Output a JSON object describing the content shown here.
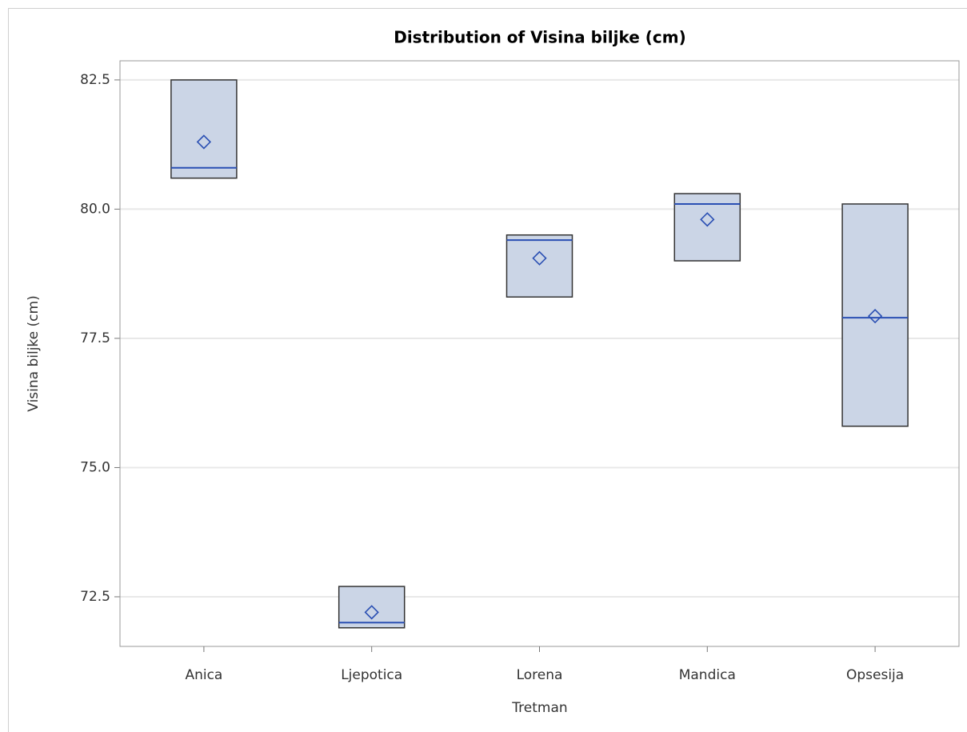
{
  "chart_data": {
    "type": "box",
    "title": "Distribution of Visina biljke (cm)",
    "x_label": "Tretman",
    "y_label": "Visina biljke (cm)",
    "categories": [
      "Anica",
      "Ljepotica",
      "Lorena",
      "Mandica",
      "Opsesija"
    ],
    "q1": [
      80.6,
      71.9,
      78.3,
      79.0,
      75.8
    ],
    "median": [
      80.8,
      72.0,
      79.4,
      80.1,
      77.9
    ],
    "q3": [
      82.5,
      72.7,
      79.5,
      80.3,
      80.1
    ],
    "mean": [
      81.3,
      72.2,
      79.05,
      79.8,
      77.93
    ],
    "box_color": "#cbd5e6",
    "line_color": "#2a4fb3",
    "ylim": [
      71.54,
      82.87
    ],
    "yticks": [
      72.5,
      {
        "value": 75,
        "label": "75.0"
      },
      77.5,
      {
        "value": 80,
        "label": "80.0"
      },
      82.5
    ],
    "grid": true
  }
}
